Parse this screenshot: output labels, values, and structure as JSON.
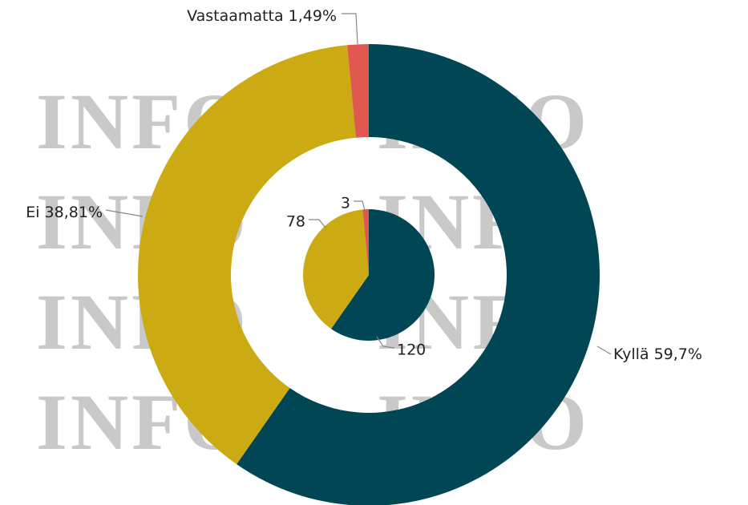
{
  "watermark": "INFO",
  "chart_data": [
    {
      "type": "donut",
      "categories": [
        "Kyllä",
        "Ei",
        "Vastaamatta"
      ],
      "values": [
        59.7,
        38.81,
        1.49
      ],
      "value_labels": [
        "59,7%",
        "38,81%",
        "1,49%"
      ],
      "colors": [
        "#004654",
        "#ccaa14",
        "#e0584f"
      ]
    },
    {
      "type": "pie",
      "values": [
        120,
        78,
        3
      ],
      "colors": [
        "#004654",
        "#ccaa14",
        "#e0584f"
      ]
    }
  ]
}
